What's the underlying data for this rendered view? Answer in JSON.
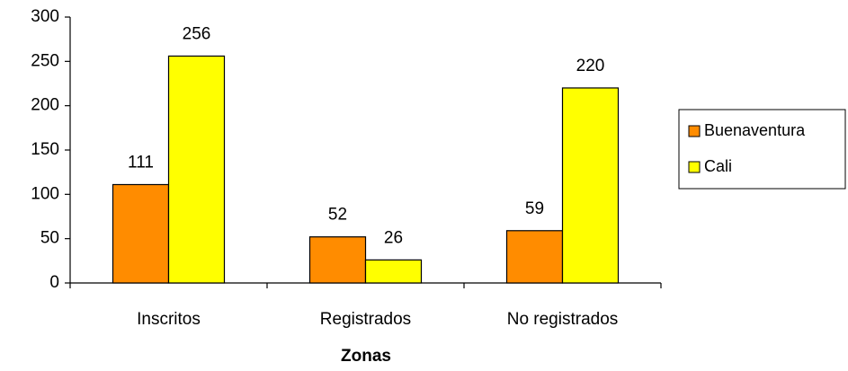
{
  "chart_data": {
    "type": "bar",
    "x_label": "Zonas",
    "categories": [
      "Inscritos",
      "Registrados",
      "No registrados"
    ],
    "series": [
      {
        "name": "Buenaventura",
        "color": "#ff8c00",
        "values": [
          111,
          52,
          59
        ]
      },
      {
        "name": "Cali",
        "color": "#ffff00",
        "values": [
          256,
          26,
          220
        ]
      }
    ],
    "ylim": [
      0,
      300
    ],
    "yticks": [
      0,
      50,
      100,
      150,
      200,
      250,
      300
    ],
    "legend": "right"
  }
}
